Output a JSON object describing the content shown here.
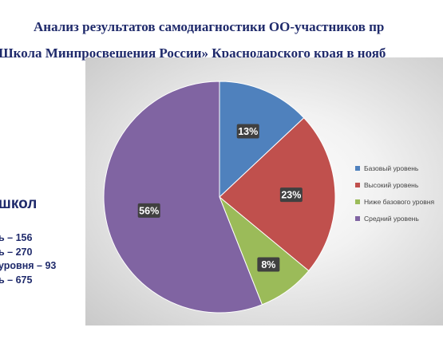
{
  "page": {
    "title_line1": "Анализ результатов самодиагностики ОО-участников пр",
    "title_line2": "Школа Минпросвещения России» Краснодарского края в нояб"
  },
  "left_panel": {
    "heading": "школ",
    "items": [
      "ь – 156",
      "ь – 270",
      "уровня  – 93",
      "ь – 675"
    ]
  },
  "chart_data": {
    "type": "pie",
    "title": "",
    "categories": [
      "Базовый уровень",
      "Высокий уровень",
      "Ниже базового уровня",
      "Средний уровень"
    ],
    "values": [
      13,
      23,
      8,
      56
    ],
    "labels": [
      "13%",
      "23%",
      "8%",
      "56%"
    ],
    "colors": [
      "#4f81bd",
      "#c0504d",
      "#9bbb59",
      "#8064a2"
    ],
    "legend_position": "right",
    "legend_entries": [
      "Базовый уровень",
      "Высокий уровень",
      "Ниже базового уровня",
      "Средний уровень"
    ]
  }
}
